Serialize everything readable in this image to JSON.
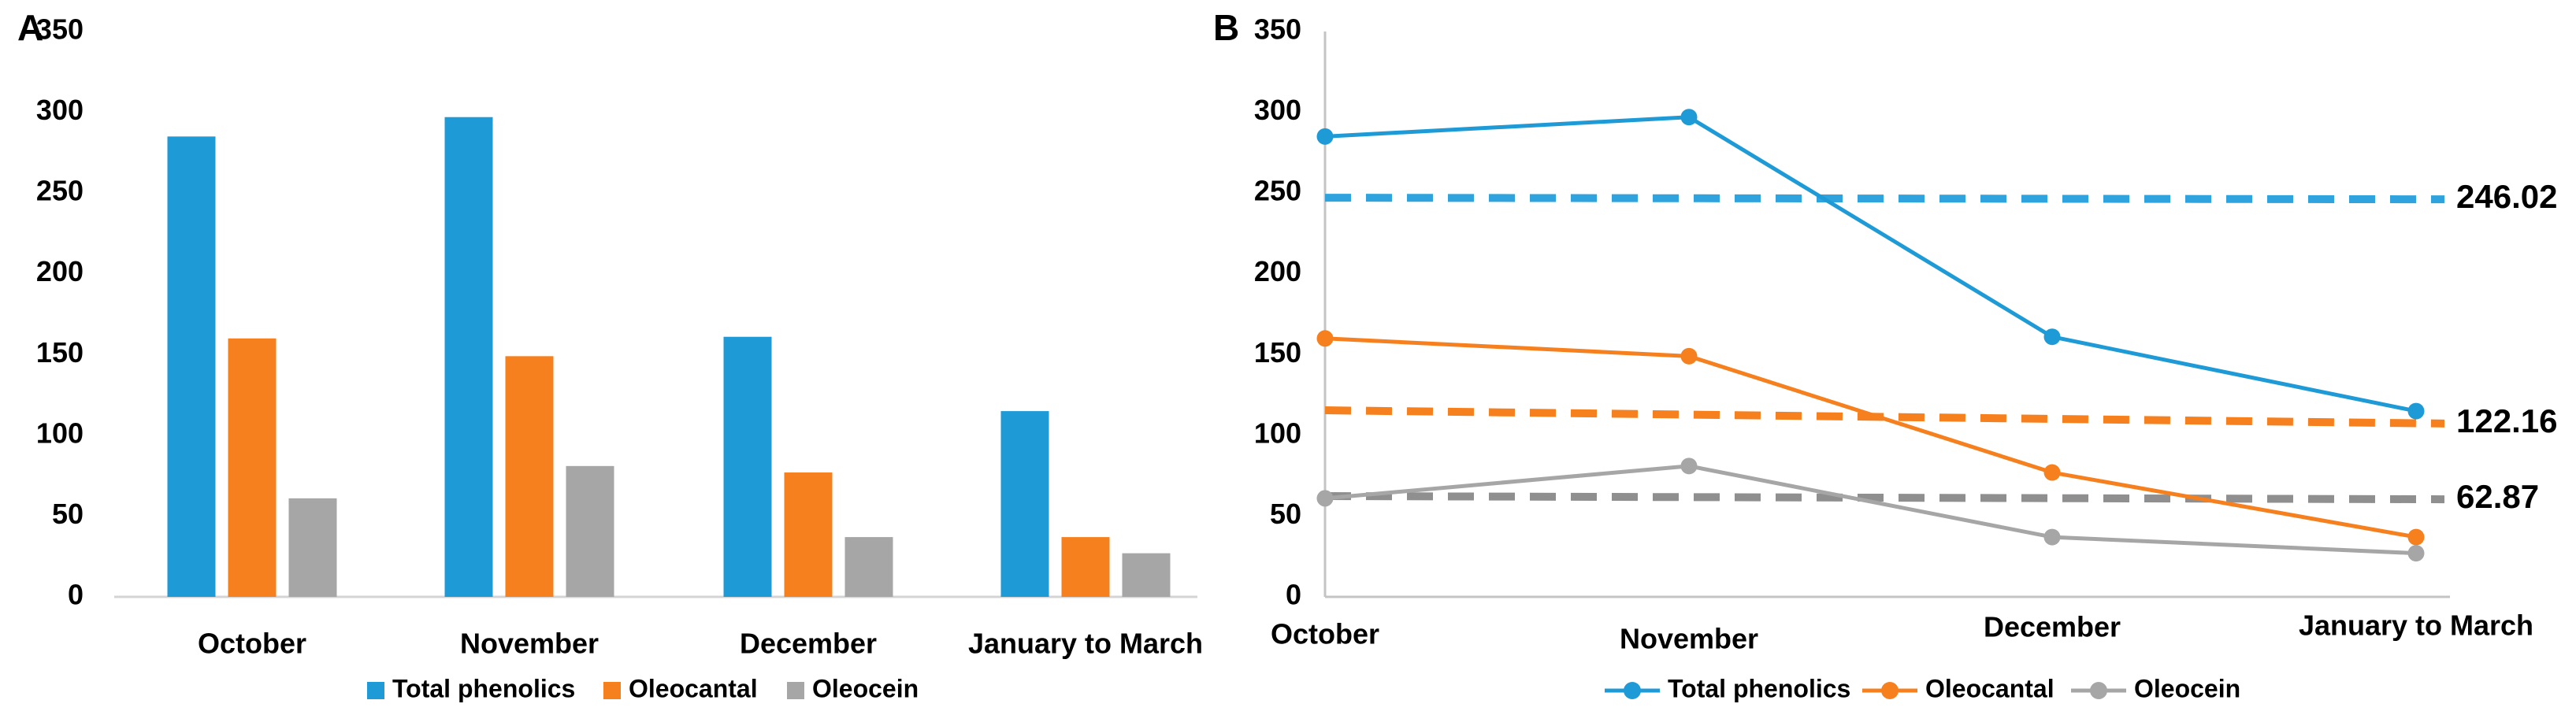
{
  "figure": {
    "background": "#FFFFFF",
    "panels": [
      {
        "id": "A",
        "label": "A"
      },
      {
        "id": "B",
        "label": "B"
      }
    ]
  },
  "chart_data": [
    {
      "panel": "A",
      "type": "bar",
      "title": "",
      "categories": [
        "October",
        "November",
        "December",
        "January to March"
      ],
      "series": [
        {
          "name": "Total phenolics",
          "color": "#1E9BD7",
          "values": [
            285,
            297,
            161,
            115
          ]
        },
        {
          "name": "Oleocantal",
          "color": "#F6801E",
          "values": [
            160,
            149,
            77,
            37
          ]
        },
        {
          "name": "Oleocein",
          "color": "#A6A6A6",
          "values": [
            61,
            81,
            37,
            27
          ]
        }
      ],
      "xlabel": "",
      "ylabel": "",
      "ylim": [
        0,
        350
      ],
      "yticks": [
        0,
        50,
        100,
        150,
        200,
        250,
        300,
        350
      ],
      "grid": false,
      "legend_position": "bottom",
      "axis_color": "#D4D4D4"
    },
    {
      "panel": "B",
      "type": "line",
      "title": "",
      "categories": [
        "October",
        "November",
        "December",
        "January to March"
      ],
      "series": [
        {
          "name": "Total phenolics",
          "color": "#1E9BD7",
          "values": [
            285,
            297,
            161,
            115
          ]
        },
        {
          "name": "Oleocantal",
          "color": "#F6801E",
          "values": [
            160,
            149,
            77,
            37
          ]
        },
        {
          "name": "Oleocein",
          "color": "#A6A6A6",
          "values": [
            61,
            81,
            37,
            27
          ]
        }
      ],
      "markers": true,
      "reference_lines": [
        {
          "label": "246.02",
          "color": "#2FA3DE",
          "style": "dashed",
          "y_start": 247.1,
          "y_end": 246.1
        },
        {
          "label": "122.16",
          "color": "#F6801E",
          "style": "dashed",
          "y_start": 115.5,
          "y_end": 107.3
        },
        {
          "label": "62.87",
          "color": "#8F8F8F",
          "style": "dashed",
          "y_start": 62.4,
          "y_end": 60.4
        }
      ],
      "xlabel": "",
      "ylabel": "",
      "ylim": [
        0,
        350
      ],
      "yticks": [
        0,
        50,
        100,
        150,
        200,
        250,
        300,
        350
      ],
      "grid": false,
      "legend_position": "bottom",
      "axis_color": "#C4C4C4"
    }
  ]
}
